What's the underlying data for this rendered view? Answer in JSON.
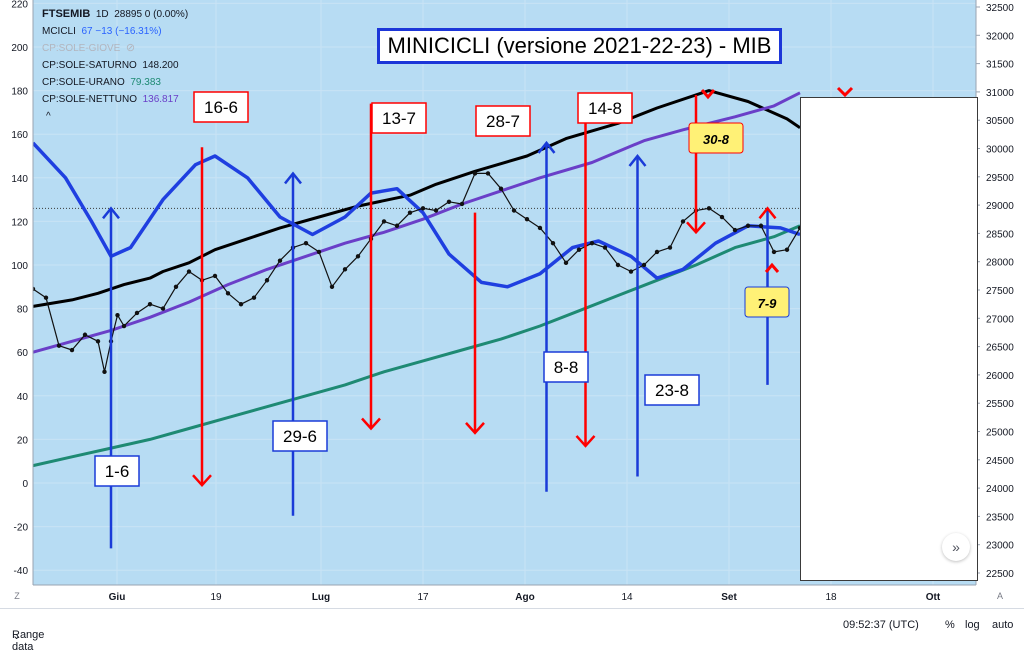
{
  "legend": {
    "symbol": "FTSEMIB",
    "interval": "1D",
    "ohlc": "28895 0 (0.00%)",
    "indicators": [
      {
        "name": "MCICLI",
        "value": "67 −13 (−16.31%)",
        "color": "#2962ff"
      },
      {
        "name": "CP:SOLE-GIOVE",
        "value": "",
        "color": "#b2b5be",
        "hidden": true
      },
      {
        "name": "CP:SOLE-SATURNO",
        "value": "148.200",
        "color": "#131722"
      },
      {
        "name": "CP:SOLE-URANO",
        "value": "79.383",
        "color": "#1e8a73"
      },
      {
        "name": "CP:SOLE-NETTUNO",
        "value": "136.817",
        "color": "#6a3fc8"
      }
    ],
    "collapse_glyph": "^"
  },
  "title": "MINICICLI (versione 2021-22-23) - MIB",
  "colors": {
    "background": "#b7dcf3",
    "axis_bg": "#ffffff",
    "red": "#ff0000",
    "blue": "#1a3bd8",
    "label_yellow": "#fff176"
  },
  "bottom_bar": {
    "range": "Range data",
    "time": "09:52:37 (UTC)",
    "percent": "%",
    "log": "log",
    "auto": "auto"
  },
  "scroll_glyph": "»",
  "chart_data": {
    "type": "line",
    "xlabels": [
      "Giu",
      "19",
      "Lug",
      "17",
      "Ago",
      "14",
      "Set",
      "18",
      "Ott"
    ],
    "left_axis": {
      "ticks": [
        -40,
        -20,
        0,
        20,
        40,
        60,
        80,
        100,
        120,
        140,
        160,
        180,
        200,
        220
      ],
      "ylim": [
        -45,
        222
      ]
    },
    "right_axis": {
      "ticks": [
        22500,
        23000,
        23500,
        24000,
        24500,
        25000,
        25500,
        26000,
        26500,
        27000,
        27500,
        28000,
        28500,
        29000,
        29500,
        30000,
        30500,
        31000,
        31500,
        32000,
        32500
      ]
    },
    "series": [
      {
        "name": "CP:SOLE-SATURNO",
        "color": "#000000",
        "values": [
          [
            0,
            81
          ],
          [
            6,
            84
          ],
          [
            10,
            87
          ],
          [
            14,
            91
          ],
          [
            18,
            94
          ],
          [
            20,
            97
          ],
          [
            24,
            101
          ],
          [
            28,
            107
          ],
          [
            33,
            112
          ],
          [
            38,
            117
          ],
          [
            44,
            122
          ],
          [
            50,
            127
          ],
          [
            58,
            132
          ],
          [
            62,
            137
          ],
          [
            68,
            143
          ],
          [
            76,
            150
          ],
          [
            82,
            158
          ],
          [
            90,
            165
          ],
          [
            96,
            172
          ],
          [
            104,
            180
          ],
          [
            110,
            175
          ],
          [
            116,
            167
          ],
          [
            118,
            163
          ]
        ]
      },
      {
        "name": "CP:SOLE-NETTUNO",
        "color": "#6a3fc8",
        "values": [
          [
            0,
            60
          ],
          [
            6,
            65
          ],
          [
            12,
            70
          ],
          [
            18,
            76
          ],
          [
            24,
            83
          ],
          [
            30,
            91
          ],
          [
            36,
            98
          ],
          [
            42,
            104
          ],
          [
            48,
            110
          ],
          [
            54,
            115
          ],
          [
            60,
            121
          ],
          [
            66,
            128
          ],
          [
            72,
            134
          ],
          [
            78,
            140
          ],
          [
            86,
            147
          ],
          [
            94,
            157
          ],
          [
            100,
            162
          ],
          [
            108,
            168
          ],
          [
            114,
            173
          ],
          [
            118,
            179
          ]
        ]
      },
      {
        "name": "CP:SOLE-URANO",
        "color": "#1e8a73",
        "values": [
          [
            0,
            8
          ],
          [
            6,
            12
          ],
          [
            12,
            16
          ],
          [
            18,
            20
          ],
          [
            24,
            25
          ],
          [
            30,
            30
          ],
          [
            36,
            35
          ],
          [
            42,
            40
          ],
          [
            48,
            45
          ],
          [
            54,
            51
          ],
          [
            60,
            56
          ],
          [
            66,
            61
          ],
          [
            72,
            66
          ],
          [
            78,
            72
          ],
          [
            84,
            79
          ],
          [
            90,
            86
          ],
          [
            96,
            93
          ],
          [
            102,
            100
          ],
          [
            108,
            108
          ],
          [
            114,
            113
          ],
          [
            118,
            118
          ]
        ]
      },
      {
        "name": "MCICLI",
        "color": "#1f3fe0",
        "values": [
          [
            0,
            156
          ],
          [
            5,
            140
          ],
          [
            9,
            120
          ],
          [
            12,
            104
          ],
          [
            15,
            108
          ],
          [
            20,
            130
          ],
          [
            25,
            146
          ],
          [
            28,
            150
          ],
          [
            33,
            140
          ],
          [
            38,
            122
          ],
          [
            43,
            114
          ],
          [
            48,
            122
          ],
          [
            52,
            133
          ],
          [
            56,
            135
          ],
          [
            60,
            124
          ],
          [
            64,
            105
          ],
          [
            69,
            92
          ],
          [
            73,
            90
          ],
          [
            78,
            96
          ],
          [
            83,
            108
          ],
          [
            87,
            111
          ],
          [
            92,
            104
          ],
          [
            96,
            94
          ],
          [
            100,
            98
          ],
          [
            105,
            110
          ],
          [
            110,
            118
          ],
          [
            115,
            117
          ],
          [
            118,
            114
          ]
        ]
      },
      {
        "name": "FTSEMIB",
        "color": "#111111",
        "values": [
          [
            0,
            89
          ],
          [
            2,
            85
          ],
          [
            4,
            63
          ],
          [
            6,
            61
          ],
          [
            8,
            68
          ],
          [
            10,
            65
          ],
          [
            11,
            51
          ],
          [
            12,
            65
          ],
          [
            13,
            77
          ],
          [
            14,
            72
          ],
          [
            16,
            78
          ],
          [
            18,
            82
          ],
          [
            20,
            80
          ],
          [
            22,
            90
          ],
          [
            24,
            97
          ],
          [
            26,
            93
          ],
          [
            28,
            95
          ],
          [
            30,
            87
          ],
          [
            32,
            82
          ],
          [
            34,
            85
          ],
          [
            36,
            93
          ],
          [
            38,
            102
          ],
          [
            40,
            108
          ],
          [
            42,
            110
          ],
          [
            44,
            106
          ],
          [
            46,
            90
          ],
          [
            48,
            98
          ],
          [
            50,
            104
          ],
          [
            52,
            112
          ],
          [
            54,
            120
          ],
          [
            56,
            118
          ],
          [
            58,
            124
          ],
          [
            60,
            126
          ],
          [
            62,
            125
          ],
          [
            64,
            129
          ],
          [
            66,
            128
          ],
          [
            68,
            142
          ],
          [
            70,
            142
          ],
          [
            72,
            135
          ],
          [
            74,
            125
          ],
          [
            76,
            121
          ],
          [
            78,
            117
          ],
          [
            80,
            110
          ],
          [
            82,
            101
          ],
          [
            84,
            107
          ],
          [
            86,
            110
          ],
          [
            88,
            108
          ],
          [
            90,
            100
          ],
          [
            92,
            97
          ],
          [
            94,
            100
          ],
          [
            96,
            106
          ],
          [
            98,
            108
          ],
          [
            100,
            120
          ],
          [
            102,
            125
          ],
          [
            104,
            126
          ],
          [
            106,
            122
          ],
          [
            108,
            116
          ],
          [
            110,
            118
          ],
          [
            112,
            118
          ],
          [
            114,
            106
          ],
          [
            116,
            107
          ],
          [
            118,
            117
          ]
        ]
      }
    ],
    "cycle_lows": [
      {
        "label": "1-6",
        "x": 12
      },
      {
        "label": "29-6",
        "x": 40
      },
      {
        "label": "8-8",
        "x": 79
      },
      {
        "label": "23-8",
        "x": 93
      },
      {
        "label": "7-9",
        "x": 113
      }
    ],
    "cycle_highs": [
      {
        "label": "16-6",
        "x": 26
      },
      {
        "label": "13-7",
        "x": 52
      },
      {
        "label": "28-7",
        "x": 68
      },
      {
        "label": "14-8",
        "x": 85
      },
      {
        "label": "30-8",
        "x": 102
      }
    ]
  }
}
